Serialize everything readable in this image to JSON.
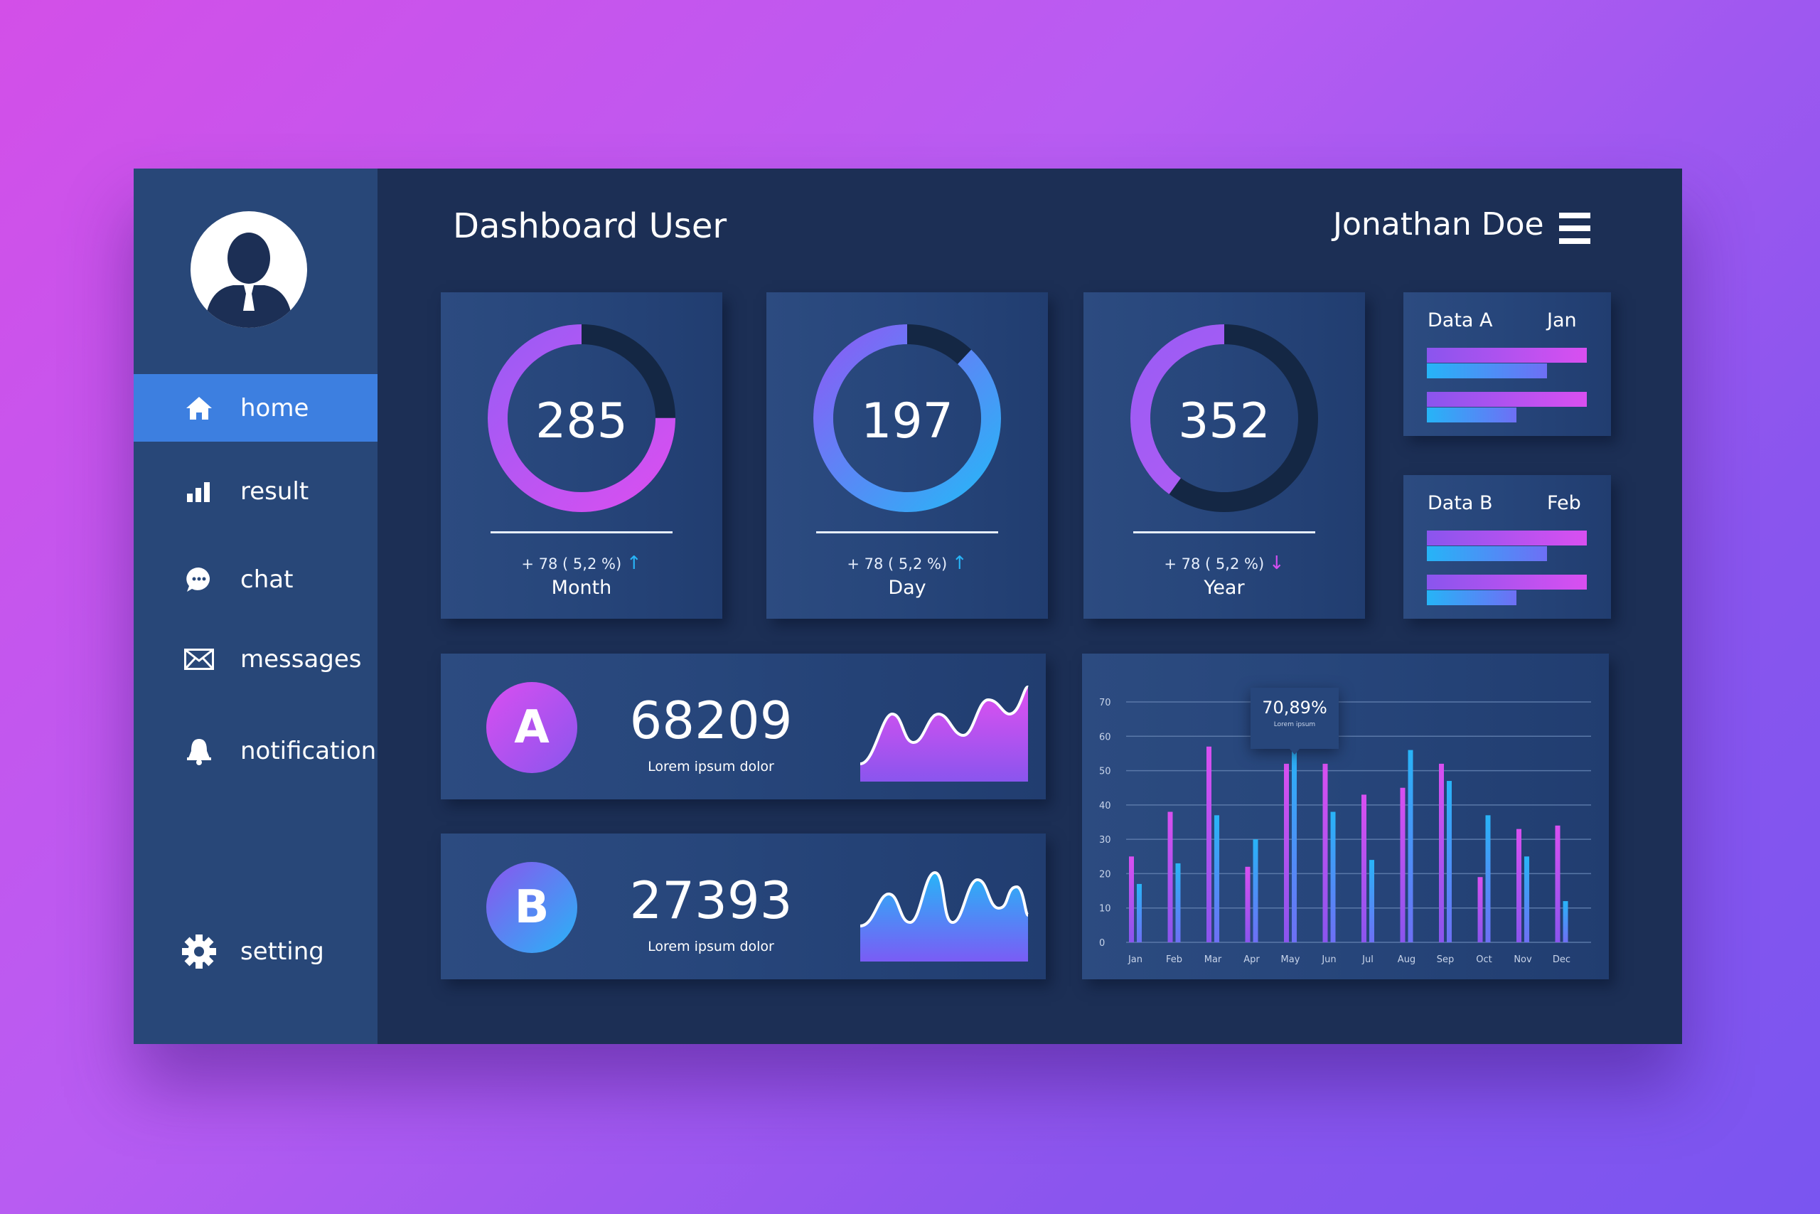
{
  "header": {
    "title": "Dashboard User",
    "user_name": "Jonathan Doe",
    "menu_icon": "hamburger-icon"
  },
  "sidebar": {
    "items": [
      {
        "label": "home",
        "icon": "home-icon",
        "active": true
      },
      {
        "label": "result",
        "icon": "bar-chart-icon"
      },
      {
        "label": "chat",
        "icon": "chat-bubble-icon"
      },
      {
        "label": "messages",
        "icon": "envelope-icon"
      },
      {
        "label": "notification",
        "icon": "bell-icon"
      }
    ],
    "setting": {
      "label": "setting",
      "icon": "gear-icon"
    }
  },
  "stats": [
    {
      "value": "285",
      "delta": "+ 78 ( 5,2 %)",
      "trend": "up",
      "period": "Month",
      "fill": 0.75
    },
    {
      "value": "197",
      "delta": "+ 78 ( 5,2 %)",
      "trend": "up",
      "period": "Day",
      "fill": 0.88
    },
    {
      "value": "352",
      "delta": "+ 78 ( 5,2 %)",
      "trend": "down",
      "period": "Year",
      "fill": 0.4
    }
  ],
  "mini": [
    {
      "label": "Data A",
      "month": "Jan",
      "bars": [
        1.0,
        0.75,
        1.0,
        0.56
      ]
    },
    {
      "label": "Data B",
      "month": "Feb",
      "bars": [
        1.0,
        0.75,
        1.0,
        0.56
      ]
    }
  ],
  "kpis": [
    {
      "letter": "A",
      "value": "68209",
      "caption": "Lorem ipsum dolor"
    },
    {
      "letter": "B",
      "value": "27393",
      "caption": "Lorem ipsum dolor"
    }
  ],
  "colors": {
    "pink": "#d44ff0",
    "purple": "#8a5cf5",
    "blue": "#28b4f7",
    "accent": "#3d7fe0"
  },
  "chart_data": {
    "type": "bar",
    "categories": [
      "Jan",
      "Feb",
      "Mar",
      "Apr",
      "May",
      "Jun",
      "Jul",
      "Aug",
      "Sep",
      "Oct",
      "Nov",
      "Dec"
    ],
    "series": [
      {
        "values": [
          25,
          38,
          57,
          22,
          52,
          52,
          43,
          45,
          52,
          19,
          33,
          34
        ]
      },
      {
        "values": [
          17,
          23,
          37,
          30,
          57,
          38,
          24,
          56,
          47,
          37,
          25,
          12
        ]
      }
    ],
    "ylim": [
      0,
      70
    ],
    "yticks": [
      0,
      10,
      20,
      30,
      40,
      50,
      60,
      70
    ],
    "grid": true,
    "tooltip": {
      "value": "70,89%",
      "caption": "Lorem ipsum",
      "category": "May"
    }
  }
}
